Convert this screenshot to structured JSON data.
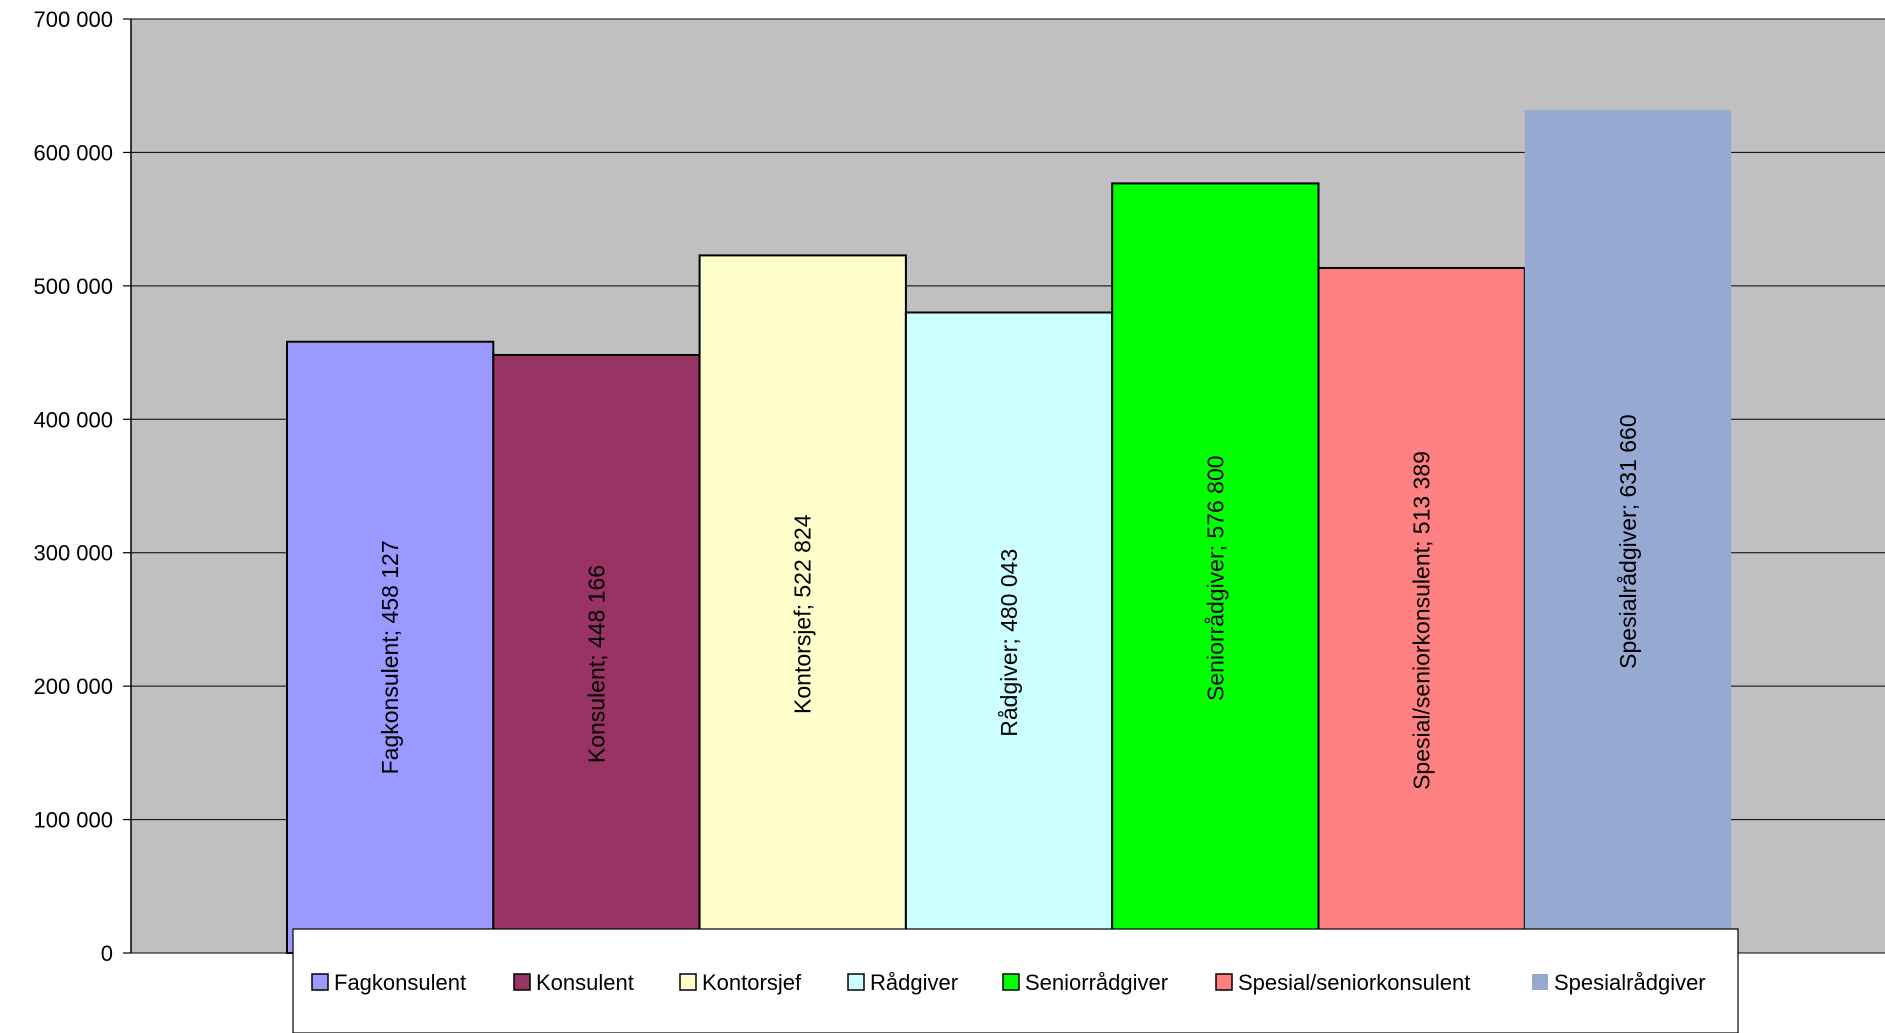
{
  "chart_data": {
    "type": "bar",
    "categories": [
      "Fagkonsulent",
      "Konsulent",
      "Kontorsjef",
      "Rådgiver",
      "Seniorrådgiver",
      "Spesial/seniorkonsulent",
      "Spesialrådgiver"
    ],
    "values": [
      458127,
      448166,
      522824,
      480043,
      576800,
      513389,
      631660
    ],
    "data_labels": [
      "Fagkonsulent; 458 127",
      "Konsulent; 448 166",
      "Kontorsjef; 522 824",
      "Rådgiver; 480 043",
      "Seniorrådgiver; 576 800",
      "Spesial/seniorkonsulent; 513 389",
      "Spesialrådgiver; 631 660"
    ],
    "colors": [
      "#9999ff",
      "#993366",
      "#ffffcc",
      "#ccffff",
      "#00ff00",
      "#ff8080",
      "#95a9d3"
    ],
    "bar_outlined": [
      true,
      true,
      true,
      true,
      true,
      true,
      false
    ],
    "ylim": [
      0,
      700000
    ],
    "yticks": [
      0,
      100000,
      200000,
      300000,
      400000,
      500000,
      600000,
      700000
    ],
    "ytick_labels": [
      "0",
      "100 000",
      "200 000",
      "300 000",
      "400 000",
      "500 000",
      "600 000",
      "700 000"
    ],
    "plot_background": "#c0c0c0",
    "grid": true,
    "legend_position": "bottom",
    "title": "",
    "xlabel": "",
    "ylabel": ""
  }
}
